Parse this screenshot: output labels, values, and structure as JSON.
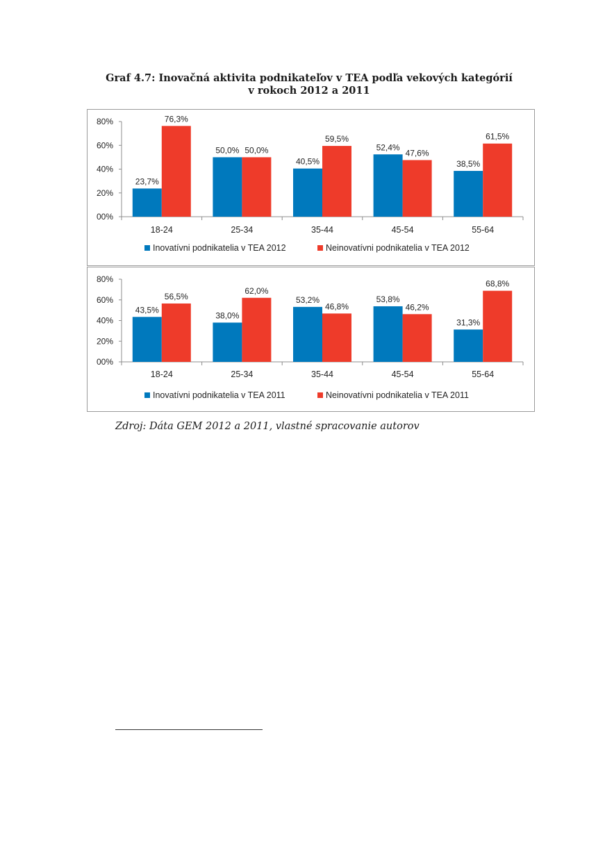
{
  "title_line1": "Graf 4.7: Inovačná aktivita podnikateľov v TEA podľa vekových kategórií",
  "title_line2": "v rokoch 2012 a 2011",
  "source": "Zdroj: Dáta GEM 2012 a 2011, vlastné spracovanie autorov",
  "colors": {
    "blue": "#0079bd",
    "red": "#ee3b2a"
  },
  "chart_data": [
    {
      "type": "bar",
      "categories": [
        "18-24",
        "25-34",
        "35-44",
        "45-54",
        "55-64"
      ],
      "ylim": [
        0,
        80
      ],
      "yticks": [
        "00%",
        "20%",
        "40%",
        "60%",
        "80%"
      ],
      "legend_position": "bottom",
      "grid": false,
      "series": [
        {
          "name": "Inovatívni podnikatelia v TEA 2012",
          "color": "#0079bd",
          "values": [
            23.7,
            50.0,
            40.5,
            52.4,
            38.5
          ],
          "labels": [
            "23,7%",
            "50,0%",
            "40,5%",
            "52,4%",
            "38,5%"
          ]
        },
        {
          "name": "Neinovatívni podnikatelia v TEA 2012",
          "color": "#ee3b2a",
          "values": [
            76.3,
            50.0,
            59.5,
            47.6,
            61.5
          ],
          "labels": [
            "76,3%",
            "50,0%",
            "59,5%",
            "47,6%",
            "61,5%"
          ]
        }
      ]
    },
    {
      "type": "bar",
      "categories": [
        "18-24",
        "25-34",
        "35-44",
        "45-54",
        "55-64"
      ],
      "ylim": [
        0,
        80
      ],
      "yticks": [
        "00%",
        "20%",
        "40%",
        "60%",
        "80%"
      ],
      "legend_position": "bottom",
      "grid": false,
      "series": [
        {
          "name": "Inovatívni podnikatelia v TEA 2011",
          "color": "#0079bd",
          "values": [
            43.5,
            38.0,
            53.2,
            53.8,
            31.3
          ],
          "labels": [
            "43,5%",
            "38,0%",
            "53,2%",
            "53,8%",
            "31,3%"
          ]
        },
        {
          "name": "Neinovatívni podnikatelia v TEA 2011",
          "color": "#ee3b2a",
          "values": [
            56.5,
            62.0,
            46.8,
            46.2,
            68.8
          ],
          "labels": [
            "56,5%",
            "62,0%",
            "46,8%",
            "46,2%",
            "68,8%"
          ]
        }
      ]
    }
  ]
}
